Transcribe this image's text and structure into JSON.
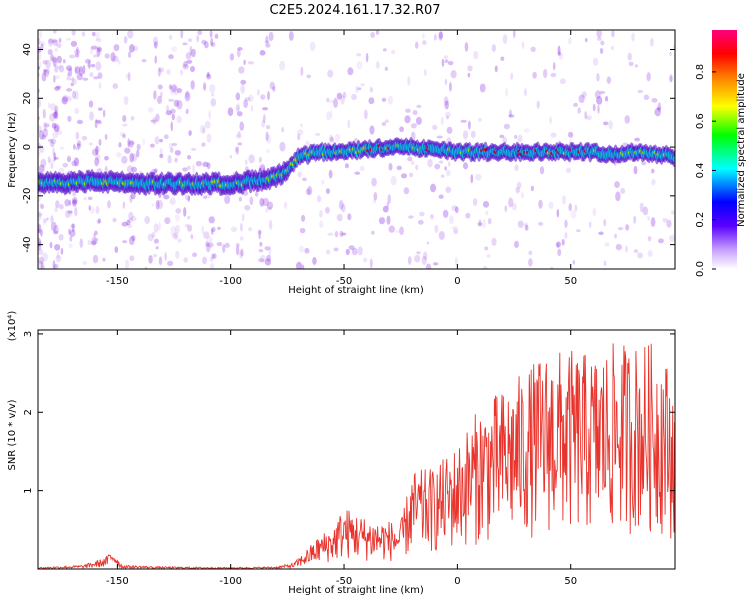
{
  "title": "C2E5.2024.161.17.32.R07",
  "colors": {
    "line": "#e8342c",
    "scatter": "#8a2be2",
    "band_edge": "#4b00c8",
    "band_core": "#00d8e0",
    "band_peak": "#d01010"
  },
  "chart_data": [
    {
      "type": "heatmap",
      "xlabel": "Height of straight line (km)",
      "ylabel": "Frequency (Hz)",
      "xlim": [
        -185,
        96
      ],
      "ylim": [
        -50,
        48
      ],
      "xticks": [
        -150,
        -100,
        -50,
        0,
        50
      ],
      "yticks": [
        -40,
        -20,
        0,
        20,
        40
      ],
      "colorbar": {
        "label": "Normalized spectral amplitude",
        "range": [
          0,
          0.97
        ],
        "ticks": [
          "0.0",
          "0.2",
          "0.4",
          "0.6",
          "0.8"
        ],
        "tick_values": [
          0,
          0.2,
          0.4,
          0.6,
          0.8
        ],
        "colormap": [
          "#ffffff",
          "#c8a0ff",
          "#5a00ff",
          "#0000ff",
          "#00ffff",
          "#00ff00",
          "#ffff00",
          "#ff8000",
          "#ff0000",
          "#ff0080"
        ]
      },
      "ridge": {
        "x": [
          -185,
          -160,
          -140,
          -120,
          -100,
          -90,
          -82,
          -75,
          -70,
          -60,
          -50,
          -40,
          -30,
          -20,
          -10,
          0,
          10,
          20,
          30,
          40,
          50,
          60,
          70,
          80,
          90,
          96
        ],
        "y": [
          -15,
          -14,
          -15,
          -15,
          -15,
          -14,
          -13,
          -10,
          -4,
          -2,
          -2,
          -1,
          0,
          0,
          -1,
          -2,
          -2,
          -2,
          -2,
          -2,
          -2,
          -2,
          -3,
          -2,
          -3,
          -4
        ]
      }
    },
    {
      "type": "line",
      "xlabel": "Height of straight line (km)",
      "ylabel": "SNR (10 * v/v)",
      "yunit": "(x10⁴)",
      "xlim": [
        -185,
        96
      ],
      "ylim": [
        0,
        3.05
      ],
      "xticks": [
        -150,
        -100,
        -50,
        0,
        50
      ],
      "yticks": [
        1,
        2,
        3
      ],
      "envelope": {
        "x": [
          -185,
          -165,
          -160,
          -155,
          -152,
          -148,
          -130,
          -100,
          -80,
          -72,
          -65,
          -60,
          -55,
          -50,
          -40,
          -30,
          -25,
          -20,
          -10,
          0,
          10,
          20,
          30,
          40,
          50,
          60,
          70,
          80,
          90,
          96
        ],
        "y": [
          0.02,
          0.05,
          0.1,
          0.15,
          0.28,
          0.05,
          0.03,
          0.02,
          0.03,
          0.08,
          0.3,
          0.45,
          0.55,
          0.8,
          0.65,
          0.62,
          0.6,
          1.25,
          1.3,
          1.6,
          2.1,
          2.3,
          2.55,
          2.8,
          2.8,
          2.75,
          2.9,
          2.9,
          2.9,
          2.3
        ]
      }
    }
  ]
}
